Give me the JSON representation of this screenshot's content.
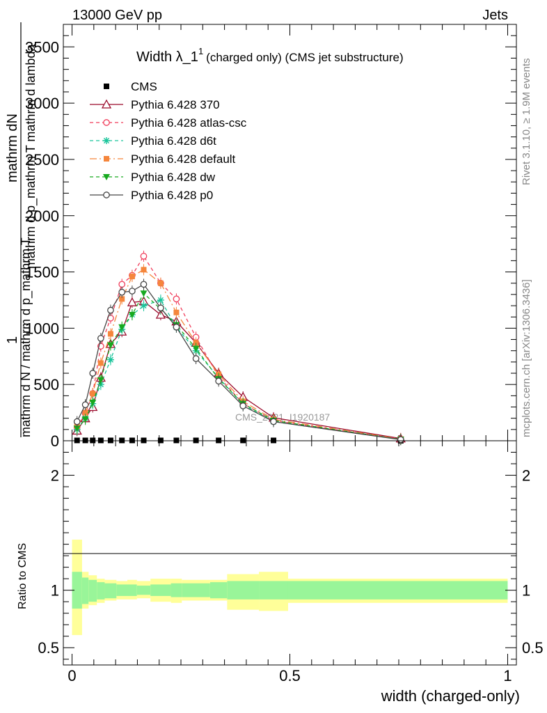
{
  "header": {
    "left": "13000 GeV pp",
    "right": "Jets"
  },
  "side_labels": {
    "rivet": "Rivet 3.1.10, ≥ 1.9M events",
    "mcplots": "mcplots.cern.ch [arXiv:1306.3436]"
  },
  "watermark": "CMS_2021_I1920187",
  "chart_data": {
    "type": "line",
    "title": "Width λ_1¹ (charged only) (CMS jet substructure)",
    "title_main": "Width λ_1",
    "title_sup": "1",
    "title_rest": "(charged only) (CMS jet substructure)",
    "xlabel": "width (charged-only)",
    "ylabel_top": "mathrm dN",
    "ylabel_top2": "mathrm d p_mathrm T mathrm d lambda",
    "ylabel_one": "1",
    "ylabel_bottom": "mathrm d N / mathrm d p_mathrm T",
    "ratio_ylabel": "Ratio to CMS",
    "xlim": [
      -0.02,
      1.02
    ],
    "ylim": [
      0,
      3700
    ],
    "ratio_ylim": [
      0.35,
      2.3
    ],
    "x_ticks": [
      0,
      0.5,
      1
    ],
    "x_tick_labels": [
      "0",
      "0.5",
      "1"
    ],
    "y_ticks": [
      0,
      500,
      1000,
      1500,
      2000,
      2500,
      3000,
      3500
    ],
    "y_tick_labels": [
      "0",
      "500",
      "1000",
      "1500",
      "2000",
      "2500",
      "3000",
      "3500"
    ],
    "ratio_ticks": [
      0.5,
      1,
      2
    ],
    "ratio_tick_labels": [
      "0.5",
      "1",
      "2"
    ],
    "grid": false,
    "legend_position": "top-left",
    "x": [
      0.0115,
      0.0305,
      0.0475,
      0.066,
      0.0885,
      0.1145,
      0.138,
      0.1645,
      0.2035,
      0.2395,
      0.2845,
      0.3365,
      0.3925,
      0.4625,
      0.7545
    ],
    "cms_values": [
      3,
      3,
      3,
      3,
      3,
      3,
      3,
      3,
      3,
      3,
      3,
      3,
      3,
      3,
      0
    ],
    "series": [
      {
        "name": "Pythia 6.428 370",
        "color": "#9b0a2b",
        "dash": "",
        "marker": "triangle-open",
        "values": [
          90,
          200,
          300,
          560,
          860,
          970,
          1230,
          1240,
          1120,
          1060,
          870,
          600,
          390,
          205,
          20
        ]
      },
      {
        "name": "Pythia 6.428 atlas-csc",
        "color": "#f03c5a",
        "dash": "5,4",
        "marker": "circle-open",
        "values": [
          120,
          240,
          420,
          840,
          1090,
          1390,
          1470,
          1640,
          1400,
          1260,
          920,
          570,
          330,
          180,
          15
        ]
      },
      {
        "name": "Pythia 6.428 d6t",
        "color": "#18c49a",
        "dash": "5,4",
        "marker": "star",
        "values": [
          100,
          200,
          330,
          500,
          720,
          990,
          1120,
          1200,
          1250,
          1010,
          800,
          560,
          320,
          170,
          12
        ]
      },
      {
        "name": "Pythia 6.428 default",
        "color": "#f5863c",
        "dash": "10,4,2,4",
        "marker": "square",
        "values": [
          130,
          250,
          420,
          690,
          950,
          1260,
          1460,
          1520,
          1400,
          1140,
          870,
          590,
          350,
          190,
          15
        ]
      },
      {
        "name": "Pythia 6.428 dw",
        "color": "#17a91f",
        "dash": "5,4",
        "marker": "triangle-down",
        "values": [
          110,
          190,
          340,
          540,
          850,
          1010,
          1120,
          1310,
          1170,
          1030,
          820,
          550,
          330,
          180,
          12
        ]
      },
      {
        "name": "Pythia 6.428 p0",
        "color": "#444444",
        "dash": "",
        "marker": "circle-open",
        "values": [
          170,
          320,
          600,
          910,
          1160,
          1320,
          1330,
          1390,
          1180,
          1010,
          730,
          530,
          310,
          170,
          10
        ]
      }
    ],
    "ratio_bands": {
      "edges": [
        0,
        0.023,
        0.038,
        0.057,
        0.075,
        0.102,
        0.127,
        0.149,
        0.18,
        0.227,
        0.252,
        0.317,
        0.356,
        0.429,
        0.496,
        1.0
      ],
      "inner_lo": [
        0.84,
        0.88,
        0.9,
        0.92,
        0.93,
        0.95,
        0.95,
        0.96,
        0.95,
        0.94,
        0.94,
        0.93,
        0.92,
        0.92,
        0.92
      ],
      "inner_hi": [
        1.16,
        1.11,
        1.09,
        1.07,
        1.06,
        1.05,
        1.05,
        1.04,
        1.05,
        1.06,
        1.06,
        1.07,
        1.08,
        1.08,
        1.08
      ],
      "outer_lo": [
        0.61,
        0.84,
        0.87,
        0.89,
        0.91,
        0.92,
        0.92,
        0.93,
        0.9,
        0.89,
        0.91,
        0.91,
        0.83,
        0.82,
        0.89
      ],
      "outer_hi": [
        1.44,
        1.16,
        1.13,
        1.1,
        1.09,
        1.08,
        1.09,
        1.08,
        1.1,
        1.1,
        1.09,
        1.09,
        1.14,
        1.16,
        1.1
      ]
    }
  }
}
